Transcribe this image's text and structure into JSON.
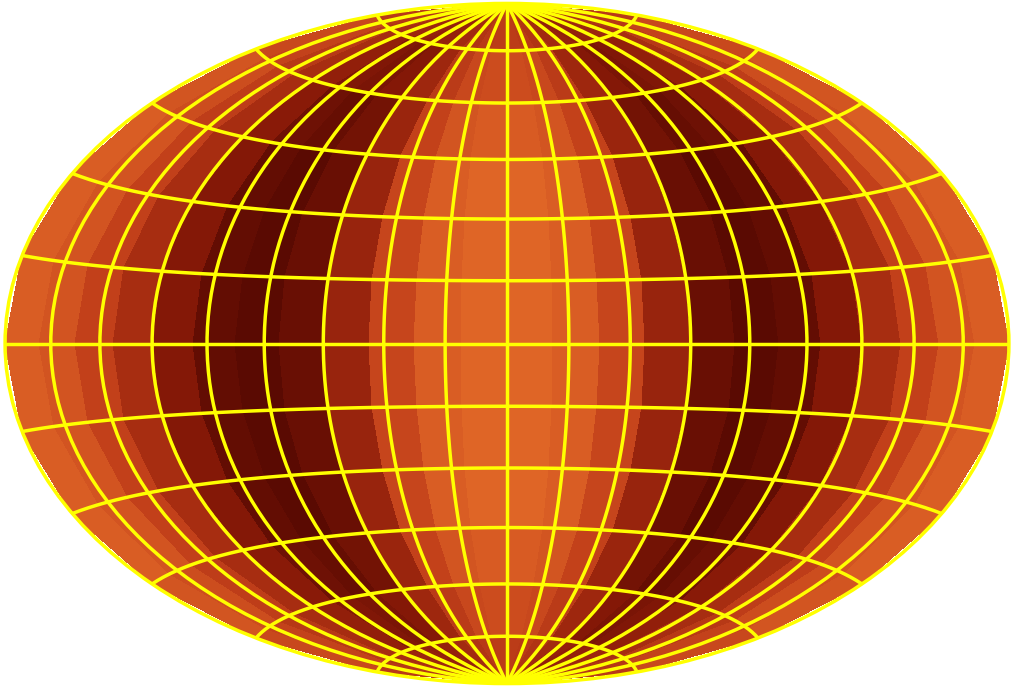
{
  "chart_data": {
    "type": "heatmap",
    "xlim": [
      -180,
      180
    ],
    "ylim": [
      -90,
      90
    ],
    "xticks": [
      -160,
      -140,
      -120,
      -100,
      -80,
      -60,
      -40,
      -20,
      0,
      20,
      40,
      60,
      80,
      100,
      120,
      140,
      160
    ],
    "yticks": [
      -75,
      -60,
      -45,
      -30,
      -15,
      0,
      15,
      30,
      45,
      60,
      75
    ],
    "grid": true,
    "tick_labels": false,
    "value_range": [
      0,
      1
    ],
    "cells": [
      [
        0.566,
        0.554,
        0.53,
        0.5,
        0.464,
        0.434,
        0.425,
        0.44,
        0.485,
        0.536,
        0.566,
        0.575,
        0.575,
        0.566,
        0.536,
        0.485,
        0.44,
        0.425,
        0.434,
        0.464,
        0.5,
        0.53,
        0.554,
        0.566
      ],
      [
        0.632,
        0.608,
        0.56,
        0.5,
        0.428,
        0.368,
        0.35,
        0.38,
        0.47,
        0.572,
        0.632,
        0.65,
        0.65,
        0.632,
        0.572,
        0.47,
        0.38,
        0.35,
        0.368,
        0.428,
        0.5,
        0.56,
        0.608,
        0.632
      ],
      [
        0.687,
        0.653,
        0.585,
        0.5,
        0.398,
        0.313,
        0.288,
        0.33,
        0.458,
        0.602,
        0.687,
        0.713,
        0.713,
        0.687,
        0.602,
        0.458,
        0.33,
        0.288,
        0.313,
        0.398,
        0.5,
        0.585,
        0.653,
        0.687
      ],
      [
        0.72,
        0.68,
        0.6,
        0.5,
        0.38,
        0.28,
        0.25,
        0.3,
        0.45,
        0.62,
        0.72,
        0.75,
        0.75,
        0.72,
        0.62,
        0.45,
        0.3,
        0.25,
        0.28,
        0.38,
        0.5,
        0.6,
        0.68,
        0.72
      ],
      [
        0.72,
        0.68,
        0.6,
        0.5,
        0.38,
        0.28,
        0.25,
        0.3,
        0.45,
        0.62,
        0.72,
        0.75,
        0.75,
        0.72,
        0.62,
        0.45,
        0.3,
        0.25,
        0.28,
        0.38,
        0.5,
        0.6,
        0.68,
        0.72
      ],
      [
        0.72,
        0.68,
        0.6,
        0.5,
        0.38,
        0.28,
        0.25,
        0.3,
        0.45,
        0.62,
        0.72,
        0.75,
        0.75,
        0.72,
        0.62,
        0.45,
        0.3,
        0.25,
        0.28,
        0.38,
        0.5,
        0.6,
        0.68,
        0.72
      ],
      [
        0.72,
        0.68,
        0.6,
        0.5,
        0.38,
        0.28,
        0.25,
        0.3,
        0.45,
        0.62,
        0.72,
        0.75,
        0.75,
        0.72,
        0.62,
        0.45,
        0.3,
        0.25,
        0.28,
        0.38,
        0.5,
        0.6,
        0.68,
        0.72
      ],
      [
        0.72,
        0.68,
        0.6,
        0.5,
        0.38,
        0.28,
        0.25,
        0.3,
        0.45,
        0.62,
        0.72,
        0.75,
        0.75,
        0.72,
        0.62,
        0.45,
        0.3,
        0.25,
        0.28,
        0.38,
        0.5,
        0.6,
        0.68,
        0.72
      ],
      [
        0.72,
        0.68,
        0.6,
        0.5,
        0.38,
        0.28,
        0.25,
        0.3,
        0.45,
        0.62,
        0.72,
        0.75,
        0.75,
        0.72,
        0.62,
        0.45,
        0.3,
        0.25,
        0.28,
        0.38,
        0.5,
        0.6,
        0.68,
        0.72
      ],
      [
        0.687,
        0.653,
        0.585,
        0.5,
        0.398,
        0.313,
        0.288,
        0.33,
        0.458,
        0.602,
        0.687,
        0.713,
        0.713,
        0.687,
        0.602,
        0.458,
        0.33,
        0.288,
        0.313,
        0.398,
        0.5,
        0.585,
        0.653,
        0.687
      ],
      [
        0.632,
        0.608,
        0.56,
        0.5,
        0.428,
        0.368,
        0.35,
        0.38,
        0.47,
        0.572,
        0.632,
        0.65,
        0.65,
        0.632,
        0.572,
        0.47,
        0.38,
        0.35,
        0.368,
        0.428,
        0.5,
        0.56,
        0.608,
        0.632
      ],
      [
        0.566,
        0.554,
        0.53,
        0.5,
        0.464,
        0.434,
        0.425,
        0.44,
        0.485,
        0.536,
        0.566,
        0.575,
        0.575,
        0.566,
        0.536,
        0.485,
        0.44,
        0.425,
        0.434,
        0.464,
        0.5,
        0.53,
        0.554,
        0.566
      ]
    ]
  }
}
